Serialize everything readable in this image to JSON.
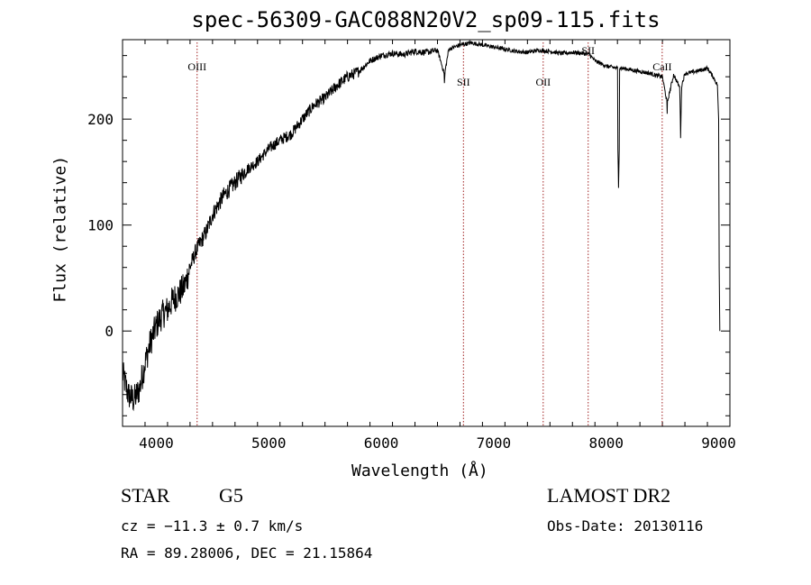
{
  "chart_data": {
    "type": "line",
    "title": "spec-56309-GAC088N20V2_sp09-115.fits",
    "xlabel": "Wavelength (Å)",
    "ylabel": "Flux (relative)",
    "xlim": [
      3700,
      9100
    ],
    "ylim": [
      -90,
      275
    ],
    "x_ticks": [
      4000,
      5000,
      6000,
      7000,
      8000,
      9000
    ],
    "y_ticks": [
      0,
      100,
      200
    ],
    "grid": false,
    "series": [
      {
        "x": [
          3700,
          3750,
          3800,
          3850,
          3900,
          3950,
          4000,
          4050,
          4100,
          4150,
          4200,
          4250,
          4300,
          4350,
          4400,
          4450,
          4500,
          4600,
          4700,
          4800,
          4900,
          5000,
          5100,
          5200,
          5300,
          5400,
          5500,
          5600,
          5700,
          5800,
          5900,
          6000,
          6100,
          6200,
          6300,
          6400,
          6500,
          6563,
          6600,
          6700,
          6800,
          6900,
          7000,
          7100,
          7200,
          7300,
          7400,
          7500,
          7600,
          7700,
          7800,
          7850,
          7900,
          8000,
          8100,
          8150,
          8200,
          8300,
          8400,
          8450,
          8500,
          8542,
          8600,
          8662,
          8700,
          8800,
          8900,
          8950,
          9000
        ],
        "values": [
          -40,
          -60,
          -65,
          -55,
          -30,
          -10,
          5,
          15,
          20,
          30,
          35,
          42,
          60,
          75,
          85,
          95,
          110,
          128,
          140,
          152,
          160,
          172,
          180,
          186,
          200,
          213,
          220,
          231,
          240,
          245,
          255,
          260,
          262,
          261,
          264,
          263,
          265,
          242,
          266,
          270,
          272,
          270,
          268,
          266,
          264,
          263,
          265,
          264,
          262,
          263,
          262,
          261,
          255,
          250,
          248,
          248,
          247,
          245,
          243,
          241,
          240,
          215,
          242,
          228,
          243,
          245,
          248,
          240,
          230
        ]
      }
    ],
    "absorption_dips": [
      {
        "x": 6563,
        "value": 228
      },
      {
        "x": 8110,
        "value": 135
      },
      {
        "x": 8542,
        "value": 205
      },
      {
        "x": 8662,
        "value": 182
      }
    ],
    "lines": [
      {
        "label": "OIII",
        "x": 4363
      },
      {
        "label": "SII",
        "x": 6731
      },
      {
        "label": "OII",
        "x": 7440
      },
      {
        "label": "SII",
        "x": 7840
      },
      {
        "label": "CaII",
        "x": 8498
      }
    ]
  },
  "info": {
    "object_class": "STAR",
    "subclass": "G5",
    "redshift": "cz = −11.3 ± 0.7 km/s",
    "coords": "RA =  89.28006, DEC =  21.15864",
    "survey": "LAMOST DR2",
    "obs_date": "Obs-Date: 20130116"
  }
}
